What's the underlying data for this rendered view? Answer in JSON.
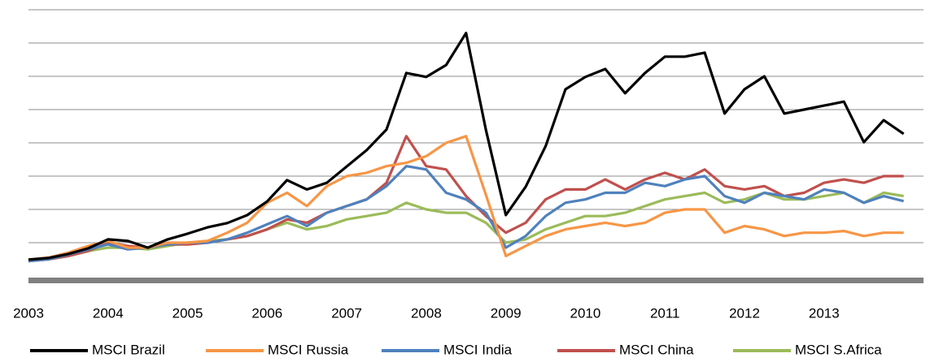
{
  "chart_data": {
    "type": "line",
    "x": [
      2003,
      2003.25,
      2003.5,
      2003.75,
      2004,
      2004.25,
      2004.5,
      2004.75,
      2005,
      2005.25,
      2005.5,
      2005.75,
      2006,
      2006.25,
      2006.5,
      2006.75,
      2007,
      2007.25,
      2007.5,
      2007.75,
      2008,
      2008.25,
      2008.5,
      2008.75,
      2009,
      2009.25,
      2009.5,
      2009.75,
      2010,
      2010.25,
      2010.5,
      2010.75,
      2011,
      2011.25,
      2011.5,
      2011.75,
      2012,
      2012.25,
      2012.5,
      2012.75,
      2013,
      2013.25,
      2013.5,
      2013.75,
      2014
    ],
    "xlim": [
      2003,
      2014.25
    ],
    "xticks": [
      2003,
      2004,
      2005,
      2006,
      2007,
      2008,
      2009,
      2010,
      2011,
      2012,
      2013
    ],
    "ylim": [
      0,
      8
    ],
    "yticks": [
      1,
      2,
      3,
      4,
      5,
      6,
      7,
      8
    ],
    "grid": true,
    "legend": "bottom",
    "series": [
      {
        "name": "MSCI Brazil",
        "color": "#000000",
        "values": [
          0.49,
          0.54,
          0.66,
          0.83,
          1.1,
          1.05,
          0.85,
          1.1,
          1.27,
          1.46,
          1.59,
          1.83,
          2.24,
          2.88,
          2.6,
          2.8,
          3.29,
          3.78,
          4.4,
          6.1,
          5.98,
          6.34,
          7.3,
          4.39,
          1.83,
          2.68,
          3.9,
          5.61,
          5.98,
          6.22,
          5.49,
          6.1,
          6.59,
          6.59,
          6.71,
          4.88,
          5.61,
          6.0,
          4.88,
          5.0,
          5.12,
          5.24,
          4.02,
          4.68,
          4.27
        ]
      },
      {
        "name": "MSCI Russia",
        "color": "#f79646",
        "values": [
          0.49,
          0.55,
          0.7,
          0.9,
          1.05,
          0.85,
          0.85,
          1.0,
          1.0,
          1.05,
          1.3,
          1.6,
          2.2,
          2.5,
          2.1,
          2.7,
          3.0,
          3.1,
          3.3,
          3.4,
          3.6,
          4.0,
          4.2,
          2.44,
          0.6,
          0.9,
          1.2,
          1.4,
          1.5,
          1.6,
          1.5,
          1.6,
          1.9,
          2.0,
          2.0,
          1.3,
          1.5,
          1.4,
          1.2,
          1.3,
          1.3,
          1.35,
          1.2,
          1.3,
          1.3
        ]
      },
      {
        "name": "MSCI India",
        "color": "#4f81bd",
        "values": [
          0.45,
          0.5,
          0.65,
          0.8,
          0.95,
          0.8,
          0.85,
          0.95,
          1.0,
          1.0,
          1.1,
          1.3,
          1.55,
          1.8,
          1.5,
          1.9,
          2.1,
          2.3,
          2.7,
          3.3,
          3.2,
          2.5,
          2.3,
          1.9,
          0.85,
          1.2,
          1.8,
          2.2,
          2.3,
          2.5,
          2.5,
          2.8,
          2.7,
          2.9,
          3.0,
          2.4,
          2.2,
          2.5,
          2.4,
          2.3,
          2.6,
          2.5,
          2.2,
          2.4,
          2.25
        ]
      },
      {
        "name": "MSCI China",
        "color": "#c0504d",
        "values": [
          0.45,
          0.5,
          0.6,
          0.75,
          1.0,
          0.9,
          0.85,
          0.95,
          0.95,
          1.0,
          1.1,
          1.2,
          1.4,
          1.7,
          1.6,
          1.9,
          2.1,
          2.3,
          2.8,
          4.2,
          3.3,
          3.2,
          2.4,
          1.8,
          1.3,
          1.6,
          2.3,
          2.6,
          2.6,
          2.9,
          2.6,
          2.9,
          3.1,
          2.9,
          3.2,
          2.7,
          2.6,
          2.7,
          2.4,
          2.5,
          2.8,
          2.9,
          2.8,
          3.0,
          3.0
        ]
      },
      {
        "name": "MSCI S.Africa",
        "color": "#9bbb59",
        "values": [
          0.45,
          0.5,
          0.6,
          0.75,
          0.85,
          0.85,
          0.8,
          0.9,
          1.0,
          1.05,
          1.1,
          1.2,
          1.4,
          1.6,
          1.4,
          1.5,
          1.7,
          1.8,
          1.9,
          2.2,
          2.0,
          1.9,
          1.9,
          1.6,
          1.0,
          1.1,
          1.4,
          1.6,
          1.8,
          1.8,
          1.9,
          2.1,
          2.3,
          2.4,
          2.5,
          2.2,
          2.3,
          2.5,
          2.3,
          2.3,
          2.4,
          2.5,
          2.2,
          2.5,
          2.4
        ]
      }
    ]
  }
}
